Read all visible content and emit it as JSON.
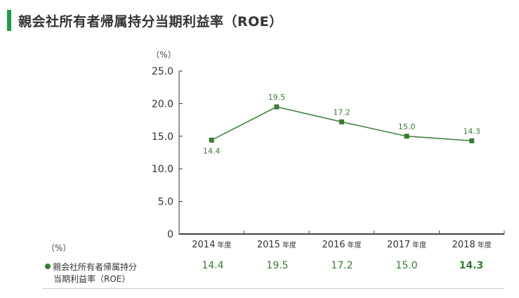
{
  "title": "親会社所有者帰属持分当期利益率（ROE）",
  "table": {
    "unit_label": "（%）",
    "row_label_line1": "親会社所有者帰属持分",
    "row_label_line2": "当期利益率（ROE）",
    "values": [
      "14.4",
      "19.5",
      "17.2",
      "15.0",
      "14.3"
    ]
  },
  "colors": {
    "accent": "#1f9a4a",
    "series": "#3a7a35"
  },
  "chart_data": {
    "type": "line",
    "y_unit_label": "（%）",
    "categories": [
      "2014",
      "2015",
      "2016",
      "2017",
      "2018"
    ],
    "category_suffix": "年度",
    "series": [
      {
        "name": "親会社所有者帰属持分当期利益率（ROE）",
        "values": [
          14.4,
          19.5,
          17.2,
          15.0,
          14.3
        ],
        "labels": [
          "14.4",
          "19.5",
          "17.2",
          "15.0",
          "14.3"
        ]
      }
    ],
    "ylim": [
      0,
      25
    ],
    "yticks": [
      0,
      5,
      10,
      15,
      20,
      25
    ],
    "ytick_labels": [
      "0",
      "5.0",
      "10.0",
      "15.0",
      "20.0",
      "25.0"
    ],
    "grid": false,
    "legend": "none"
  }
}
